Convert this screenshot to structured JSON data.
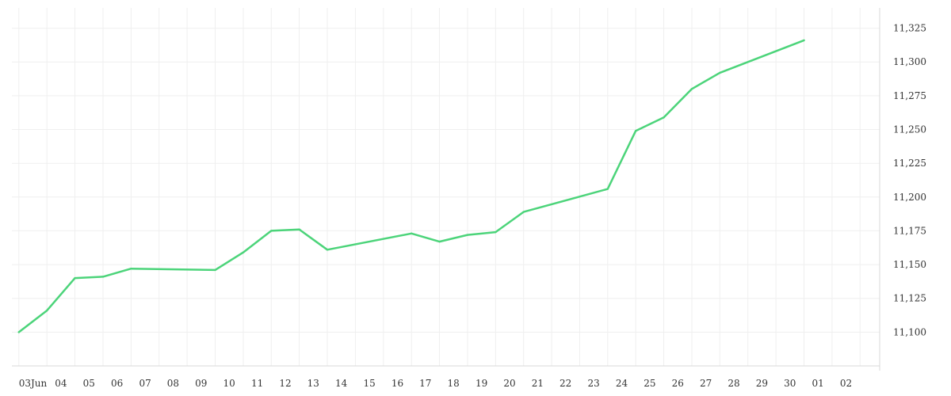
{
  "chart_data": {
    "type": "line",
    "title": "",
    "xlabel": "",
    "ylabel": "",
    "colors": {
      "line": "#4cd47a",
      "grid": "#efefef",
      "axis": "#d9d9d9",
      "text": "#333333"
    },
    "grid": true,
    "y_axis_position": "right",
    "ylim": [
      11075,
      11340
    ],
    "y_ticks": [
      {
        "value": 11100,
        "label": "11,100"
      },
      {
        "value": 11125,
        "label": "11,125"
      },
      {
        "value": 11150,
        "label": "11,150"
      },
      {
        "value": 11175,
        "label": "11,175"
      },
      {
        "value": 11200,
        "label": "11,200"
      },
      {
        "value": 11225,
        "label": "11,225"
      },
      {
        "value": 11250,
        "label": "11,250"
      },
      {
        "value": 11275,
        "label": "11,275"
      },
      {
        "value": 11300,
        "label": "11,300"
      },
      {
        "value": 11325,
        "label": "11,325"
      }
    ],
    "x_ticks": [
      {
        "x": 0,
        "label": "03Jun"
      },
      {
        "x": 1,
        "label": "04"
      },
      {
        "x": 2,
        "label": "05"
      },
      {
        "x": 3,
        "label": "06"
      },
      {
        "x": 4,
        "label": "07"
      },
      {
        "x": 5,
        "label": "08"
      },
      {
        "x": 6,
        "label": "09"
      },
      {
        "x": 7,
        "label": "10"
      },
      {
        "x": 8,
        "label": "11"
      },
      {
        "x": 9,
        "label": "12"
      },
      {
        "x": 10,
        "label": "13"
      },
      {
        "x": 11,
        "label": "14"
      },
      {
        "x": 12,
        "label": "15"
      },
      {
        "x": 13,
        "label": "16"
      },
      {
        "x": 14,
        "label": "17"
      },
      {
        "x": 15,
        "label": "18"
      },
      {
        "x": 16,
        "label": "19"
      },
      {
        "x": 17,
        "label": "20"
      },
      {
        "x": 18,
        "label": "21"
      },
      {
        "x": 19,
        "label": "22"
      },
      {
        "x": 20,
        "label": "23"
      },
      {
        "x": 21,
        "label": "24"
      },
      {
        "x": 22,
        "label": "25"
      },
      {
        "x": 23,
        "label": "26"
      },
      {
        "x": 24,
        "label": "27"
      },
      {
        "x": 25,
        "label": "28"
      },
      {
        "x": 26,
        "label": "29"
      },
      {
        "x": 27,
        "label": "30"
      },
      {
        "x": 28,
        "label": "01"
      },
      {
        "x": 29,
        "label": "02"
      }
    ],
    "xlim": [
      -0.75,
      30.2
    ],
    "series": [
      {
        "points": [
          {
            "x": -0.5,
            "y": 11100
          },
          {
            "x": 0.5,
            "y": 11116
          },
          {
            "x": 1.5,
            "y": 11140
          },
          {
            "x": 2.5,
            "y": 11141
          },
          {
            "x": 3.5,
            "y": 11147
          },
          {
            "x": 6.5,
            "y": 11146
          },
          {
            "x": 7.5,
            "y": 11159
          },
          {
            "x": 8.5,
            "y": 11175
          },
          {
            "x": 9.5,
            "y": 11176
          },
          {
            "x": 10.5,
            "y": 11161
          },
          {
            "x": 13.5,
            "y": 11173
          },
          {
            "x": 14.5,
            "y": 11167
          },
          {
            "x": 15.5,
            "y": 11172
          },
          {
            "x": 16.5,
            "y": 11174
          },
          {
            "x": 17.5,
            "y": 11189
          },
          {
            "x": 20.5,
            "y": 11206
          },
          {
            "x": 21.5,
            "y": 11249
          },
          {
            "x": 22.5,
            "y": 11259
          },
          {
            "x": 23.5,
            "y": 11280
          },
          {
            "x": 24.5,
            "y": 11292
          },
          {
            "x": 27.5,
            "y": 11316
          }
        ]
      }
    ]
  }
}
